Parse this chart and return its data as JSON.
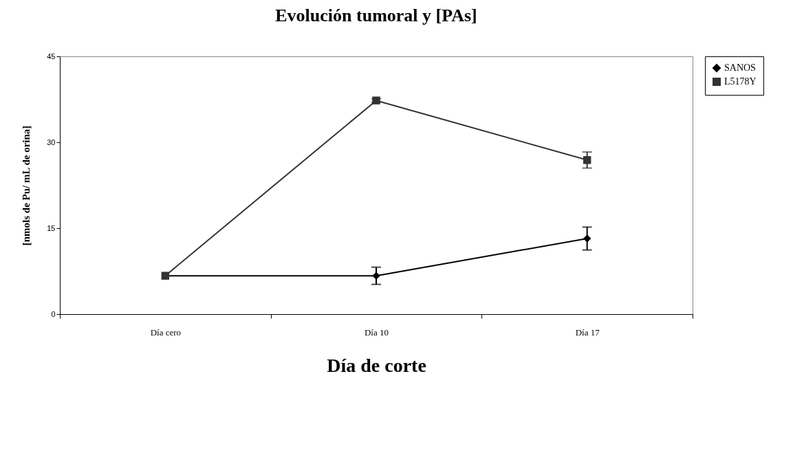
{
  "chart_data": {
    "type": "line",
    "title": "Evolución tumoral y [PAs]",
    "xlabel": "Día de corte",
    "ylabel": "[nmols de Pu/ mL de orina]",
    "categories": [
      "Día cero",
      "Día 10",
      "Día 17"
    ],
    "series": [
      {
        "name": "SANOS",
        "color": "#000000",
        "marker": "diamond",
        "values": [
          6.7,
          6.7,
          13.2
        ],
        "errors": [
          null,
          1.5,
          2.0
        ]
      },
      {
        "name": "L5178Y",
        "color": "#333333",
        "marker": "square",
        "values": [
          6.7,
          37.3,
          26.9
        ],
        "errors": [
          null,
          0.3,
          1.4
        ]
      }
    ],
    "ylim": [
      0,
      45
    ],
    "yticks": [
      0,
      15,
      30,
      45
    ],
    "grid": false,
    "legend": "right"
  }
}
